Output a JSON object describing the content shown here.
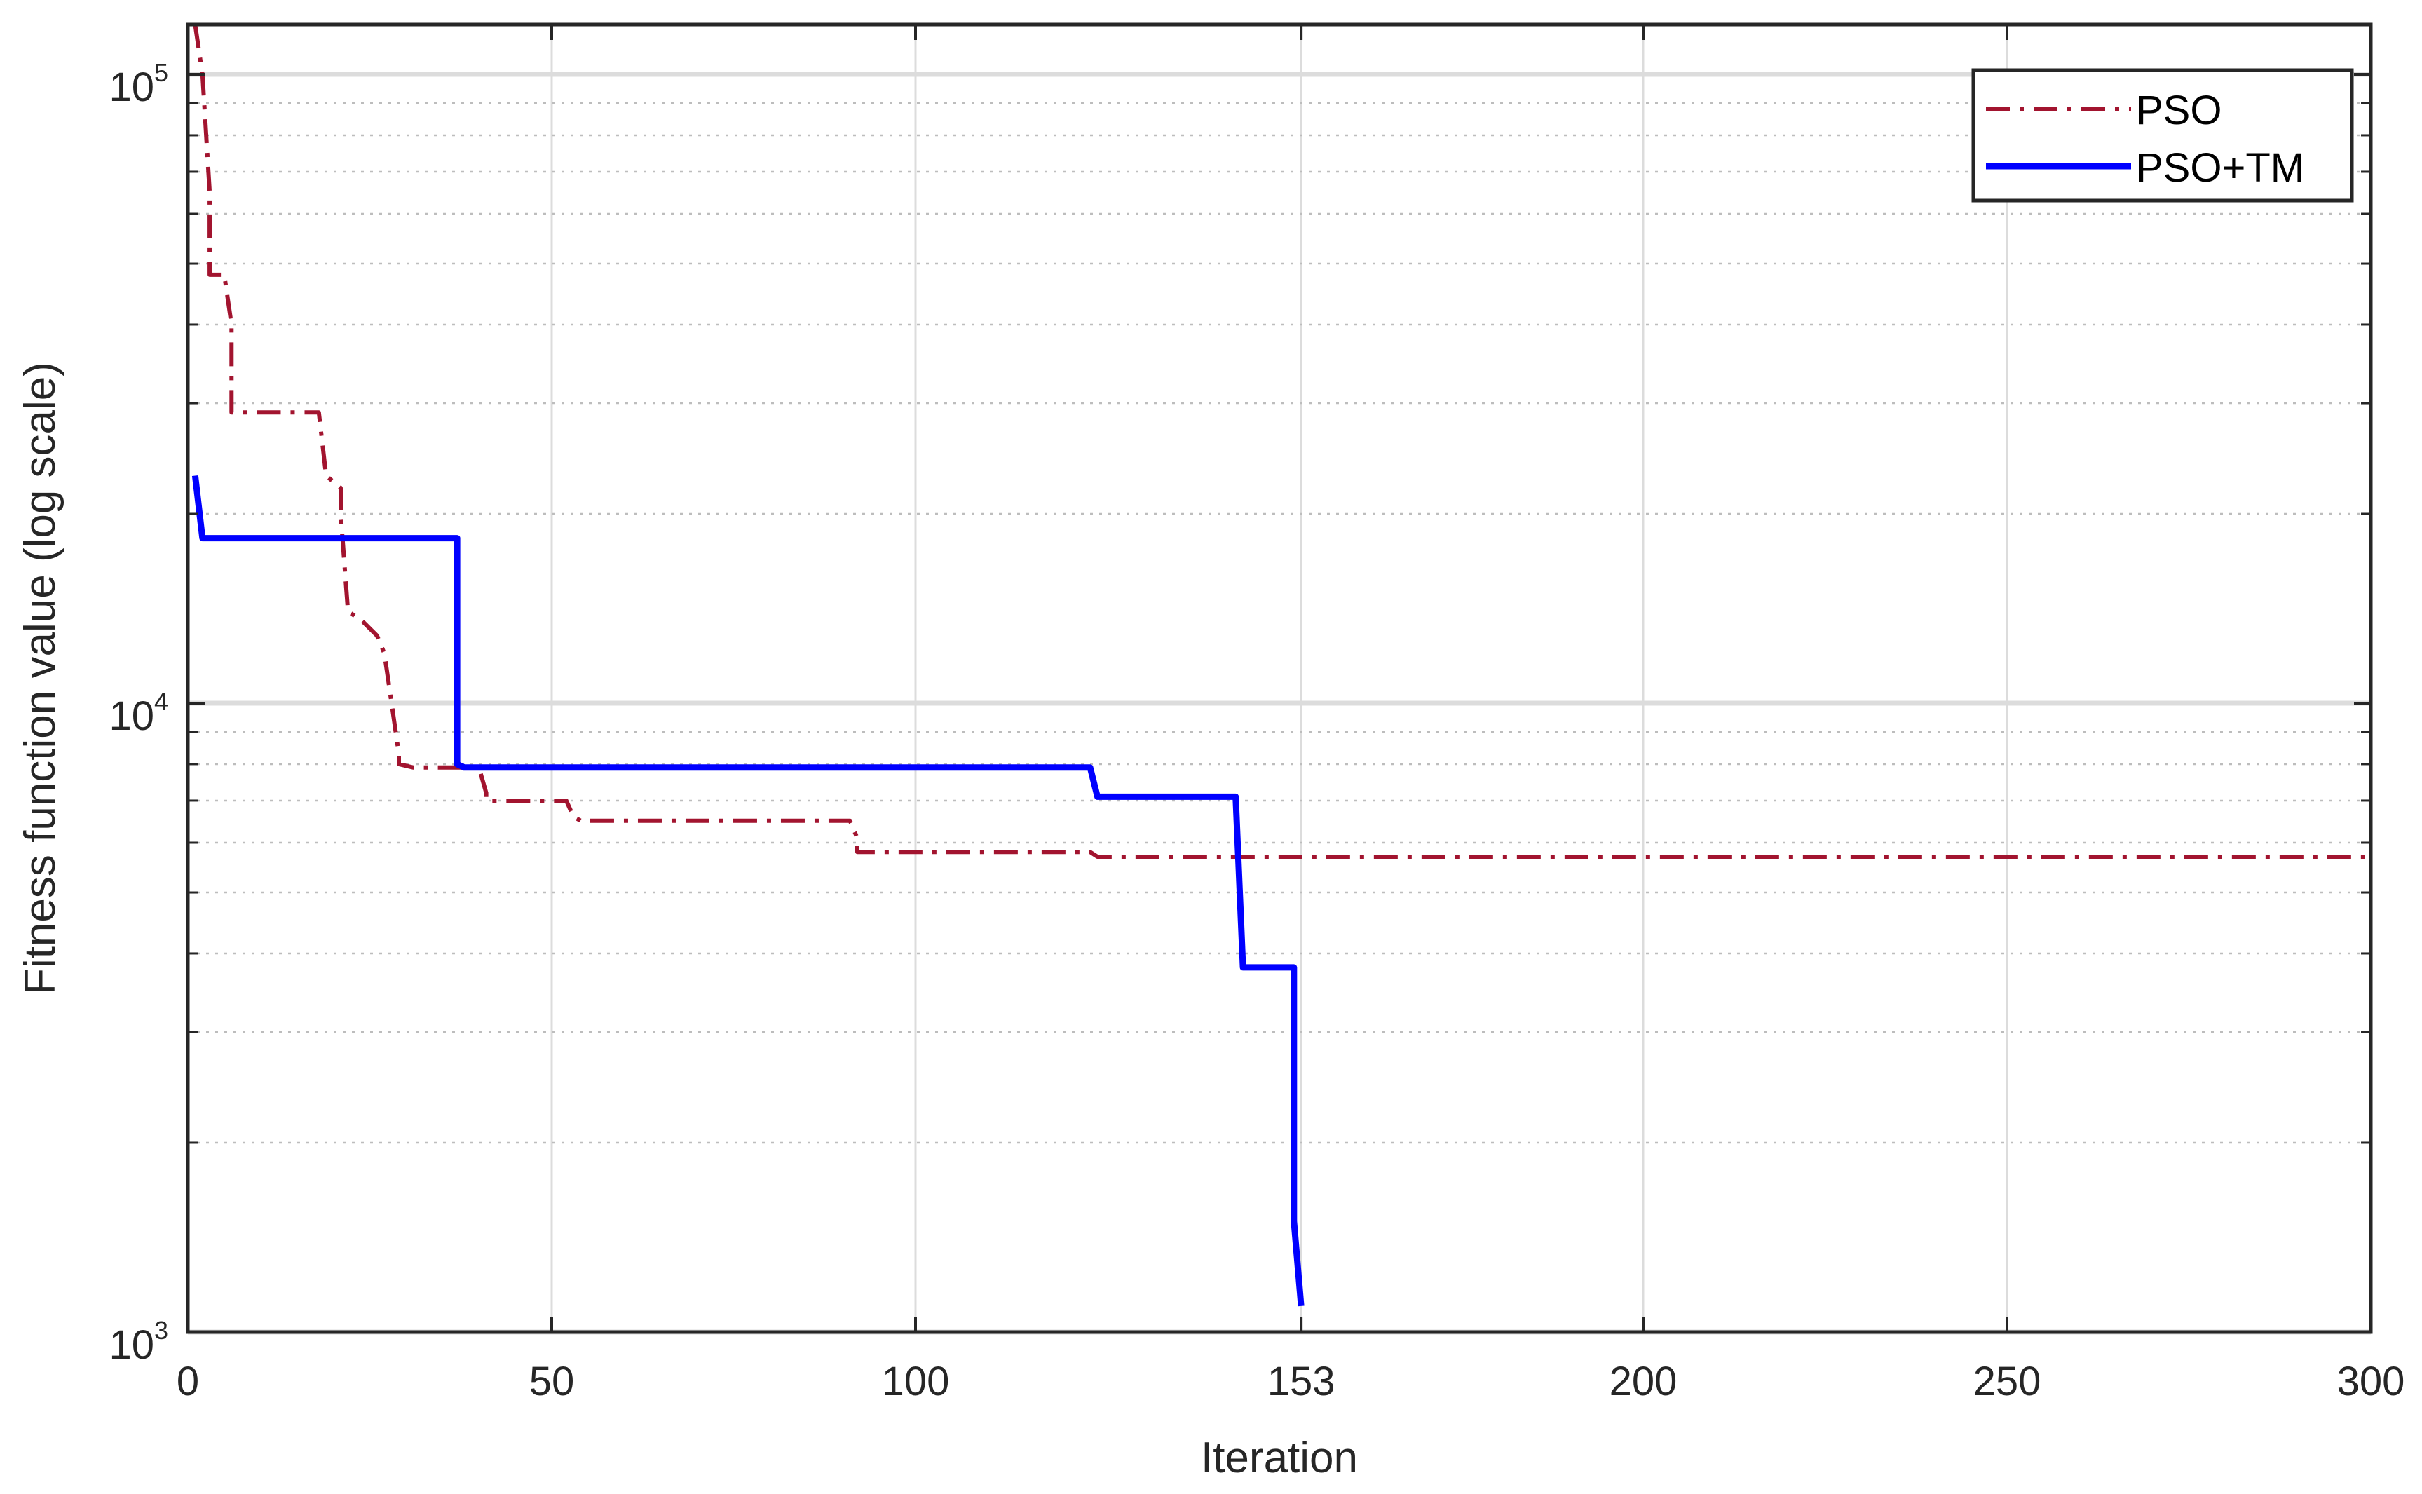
{
  "chart_data": {
    "type": "line",
    "xlabel": "Iteration",
    "ylabel": "Fitness function value (log scale)",
    "yscale": "log",
    "xlim": [
      0,
      300
    ],
    "ylim": [
      1000,
      120000
    ],
    "xticks": [
      0,
      50,
      100,
      153,
      200,
      250,
      300
    ],
    "xtick_labels": [
      "0",
      "50",
      "100",
      "153",
      "200",
      "250",
      "300"
    ],
    "yticks": [
      1000,
      10000,
      100000
    ],
    "ytick_labels": [
      {
        "base": "10",
        "exp": "3"
      },
      {
        "base": "10",
        "exp": "4"
      },
      {
        "base": "10",
        "exp": "5"
      }
    ],
    "grid": true,
    "legend_position": "top-right",
    "series": [
      {
        "name": "PSO",
        "color": "#a2142f",
        "line_style": "dash-dot",
        "x": [
          1,
          2,
          3,
          3,
          5,
          6,
          6,
          18,
          19,
          21,
          21,
          22,
          24,
          26,
          27,
          28,
          29,
          29,
          31,
          40,
          41,
          41,
          52,
          53,
          54,
          91,
          92,
          92,
          124,
          125,
          300
        ],
        "y": [
          120000,
          100000,
          65000,
          48000,
          48000,
          40000,
          29000,
          29000,
          23000,
          22000,
          20000,
          14000,
          13500,
          12800,
          12000,
          10000,
          8300,
          8000,
          7900,
          7900,
          7200,
          7000,
          7000,
          6600,
          6500,
          6500,
          6100,
          5800,
          5800,
          5700,
          5700
        ]
      },
      {
        "name": "PSO+TM",
        "color": "#0000ff",
        "line_style": "solid",
        "x": [
          1,
          2,
          37,
          37,
          38,
          124,
          125,
          144,
          145,
          152,
          152,
          153
        ],
        "y": [
          23000,
          18300,
          18300,
          8000,
          7900,
          7900,
          7100,
          7100,
          3800,
          3800,
          1500,
          1100
        ]
      }
    ]
  }
}
